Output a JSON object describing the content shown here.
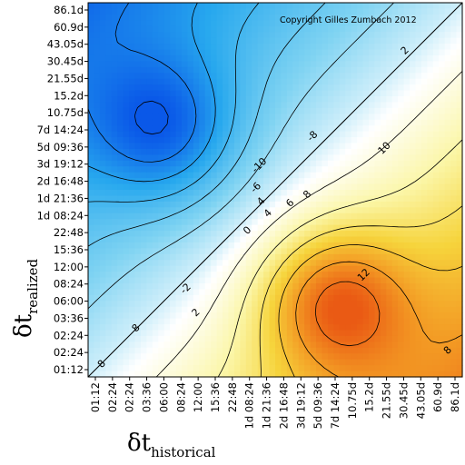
{
  "chart_data": {
    "type": "heatmap",
    "title": "",
    "copyright": "Copyright Gilles Zumbach 2012",
    "xlabel": {
      "main": "δt",
      "sub": "historical"
    },
    "ylabel": {
      "main": "δt",
      "sub": "realized"
    },
    "ticks": [
      "01:12",
      "02:24",
      "02:24",
      "03:36",
      "06:00",
      "08:24",
      "12:00",
      "15:36",
      "22:48",
      "1d 08:24",
      "1d 21:36",
      "2d 16:48",
      "3d 19:12",
      "5d 09:36",
      "7d 14:24",
      "10.75d",
      "15.2d",
      "21.55d",
      "30.45d",
      "43.05d",
      "60.9d",
      "86.1d"
    ],
    "y_ticks_top_to_bottom": [
      "86.1d",
      "60.9d",
      "43.05d",
      "30.45d",
      "21.55d",
      "15.2d",
      "10.75d",
      "7d 14:24",
      "5d 09:36",
      "3d 19:12",
      "2d 16:48",
      "1d 21:36",
      "1d 08:24",
      "22:48",
      "15:36",
      "12:00",
      "08:24",
      "06:00",
      "03:36",
      "02:24",
      "02:24",
      "01:12"
    ],
    "x_ticks_left_to_right": [
      "01:12",
      "02:24",
      "02:24",
      "03:36",
      "06:00",
      "08:24",
      "12:00",
      "15:36",
      "22:48",
      "1d 08:24",
      "1d 21:36",
      "2d 16:48",
      "3d 19:12",
      "5d 09:36",
      "7d 14:24",
      "10.75d",
      "15.2d",
      "21.55d",
      "30.45d",
      "43.05d",
      "60.9d",
      "86.1d"
    ],
    "contour_labels": [
      "8",
      "8",
      "2",
      "-8",
      "-10",
      "-6",
      "4",
      "0",
      "4",
      "6",
      "8",
      "10",
      "-2",
      "2",
      "12",
      "8"
    ],
    "value_range": [
      -12,
      13
    ],
    "features": {
      "minimum": {
        "x_tick": "06:00",
        "y_tick": "7d 14:24",
        "value": -12
      },
      "maximum": {
        "x_tick": "7d 14:24",
        "y_tick": "06:00",
        "value": 13
      },
      "zero_line": "diagonal"
    },
    "colormap": [
      "#0a58e8",
      "#27a8ee",
      "#7fd3f2",
      "#ffffff",
      "#fbf6a8",
      "#f6d43c",
      "#f39a24",
      "#ea5a14"
    ]
  }
}
